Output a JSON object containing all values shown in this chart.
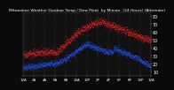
{
  "title": "Milwaukee Weather Outdoor Temp / Dew Point  by Minute  (24 Hours) (Alternate)",
  "bg_color": "#0a0a0a",
  "plot_bg_color": "#111111",
  "temp_color": "#ff2020",
  "dew_color": "#2255ff",
  "grid_color": "#555555",
  "ylim": [
    5,
    85
  ],
  "yticks": [
    10,
    20,
    30,
    40,
    50,
    60,
    70,
    80
  ],
  "ytick_labels": [
    "10",
    "20",
    "30",
    "40",
    "50",
    "60",
    "70",
    "80"
  ],
  "ylabel_fontsize": 3.5,
  "title_fontsize": 3.2,
  "xlabel_fontsize": 2.8,
  "num_points": 1440,
  "seed": 42
}
